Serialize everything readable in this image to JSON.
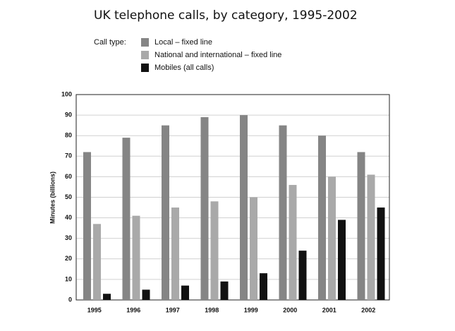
{
  "chart_data": {
    "type": "bar",
    "title": "UK telephone calls, by category, 1995-2002",
    "legend_title": "Call type:",
    "y_label": "Minutes (billions)",
    "categories": [
      "1995",
      "1996",
      "1997",
      "1998",
      "1999",
      "2000",
      "2001",
      "2002"
    ],
    "series": [
      {
        "name": "Local – fixed line",
        "color": "#858585",
        "values": [
          72,
          79,
          85,
          89,
          90,
          85,
          80,
          72
        ]
      },
      {
        "name": "National and international – fixed line",
        "color": "#a9a9a9",
        "values": [
          37,
          41,
          45,
          48,
          50,
          56,
          60,
          61
        ]
      },
      {
        "name": "Mobiles (all calls)",
        "color": "#111111",
        "values": [
          3,
          5,
          7,
          9,
          13,
          24,
          39,
          45
        ]
      }
    ],
    "ylim": [
      0,
      100
    ],
    "yticks": [
      0,
      10,
      20,
      30,
      40,
      50,
      60,
      70,
      80,
      90,
      100
    ],
    "grid": true
  }
}
